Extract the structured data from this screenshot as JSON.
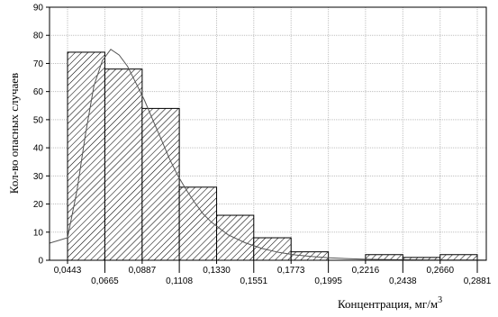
{
  "chart_data": {
    "type": "bar",
    "subtype": "histogram",
    "xlabel": "Концентрация, мг/м",
    "xlabel_sup": "3",
    "ylabel": "Кол-во опасных случаев",
    "bin_edges": [
      0.0443,
      0.0665,
      0.0887,
      0.1108,
      0.133,
      0.1551,
      0.1773,
      0.1995,
      0.2216,
      0.2438,
      0.266,
      0.2881
    ],
    "bin_edge_labels": [
      "0,0443",
      "0,0665",
      "0,0887",
      "0,1108",
      "0,1330",
      "0,1551",
      "0,1773",
      "0,1995",
      "0,2216",
      "0,2438",
      "0,2660",
      "0,2881"
    ],
    "values": [
      74,
      68,
      54,
      26,
      16,
      8,
      3,
      0,
      2,
      1,
      2
    ],
    "xlim": [
      0.0443,
      0.2881
    ],
    "ylim": [
      0,
      90
    ],
    "yticks": [
      0,
      10,
      20,
      30,
      40,
      50,
      60,
      70,
      80,
      90
    ],
    "grid": true,
    "fitted_curve": [
      [
        0.0443,
        8
      ],
      [
        0.05,
        25
      ],
      [
        0.055,
        45
      ],
      [
        0.06,
        62
      ],
      [
        0.065,
        71
      ],
      [
        0.07,
        75
      ],
      [
        0.075,
        73
      ],
      [
        0.08,
        69
      ],
      [
        0.085,
        63
      ],
      [
        0.09,
        57
      ],
      [
        0.095,
        50
      ],
      [
        0.1,
        43
      ],
      [
        0.105,
        36
      ],
      [
        0.11,
        30
      ],
      [
        0.115,
        25
      ],
      [
        0.12,
        20.5
      ],
      [
        0.125,
        16.5
      ],
      [
        0.13,
        13.5
      ],
      [
        0.14,
        9
      ],
      [
        0.15,
        6.2
      ],
      [
        0.16,
        4.2
      ],
      [
        0.17,
        2.8
      ],
      [
        0.18,
        1.9
      ],
      [
        0.19,
        1.3
      ],
      [
        0.2,
        0.9
      ],
      [
        0.21,
        0.6
      ],
      [
        0.22,
        0.4
      ],
      [
        0.24,
        0.2
      ],
      [
        0.26,
        0.1
      ],
      [
        0.2881,
        0.05
      ]
    ],
    "colors": {
      "bar_fill": "#ffffff",
      "hatch": "#000000",
      "grid": "#bfbfbf",
      "curve": "#555555"
    }
  }
}
